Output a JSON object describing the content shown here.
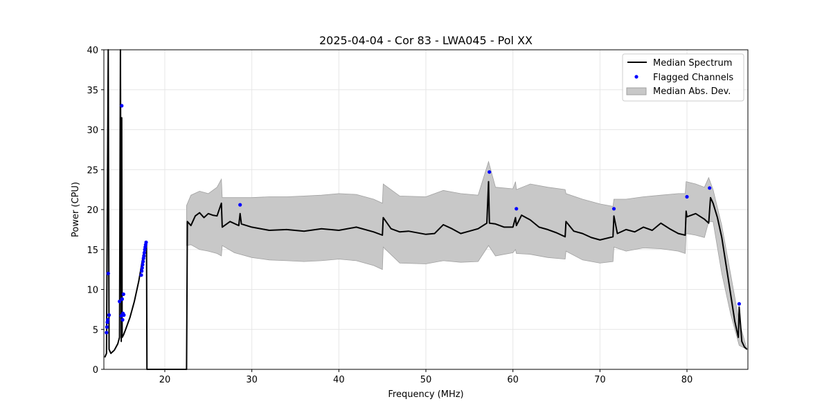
{
  "chart_data": {
    "type": "line",
    "title": "2025-04-04 - Cor 83 - LWA045 - Pol XX",
    "xlabel": "Frequency (MHz)",
    "ylabel": "Power (CPU)",
    "xlim": [
      13,
      87
    ],
    "ylim": [
      0,
      40
    ],
    "xticks": [
      20,
      30,
      40,
      50,
      60,
      70,
      80
    ],
    "yticks": [
      0,
      5,
      10,
      15,
      20,
      25,
      30,
      35,
      40
    ],
    "grid": true,
    "legend_position": "top-right",
    "colors": {
      "median": "#000000",
      "flagged": "#0000ff",
      "mad": "#c8c8c8",
      "mad_edge": "#a0a0a0",
      "grid": "#e6e6e6"
    },
    "series": [
      {
        "name": "Median Spectrum",
        "kind": "line",
        "x": [
          13.1,
          13.3,
          13.5,
          13.6,
          13.8,
          14.2,
          14.6,
          14.8,
          14.9,
          15.0,
          15.05,
          15.1,
          15.25,
          15.5,
          16.0,
          16.5,
          17.0,
          17.4,
          17.7,
          17.9,
          17.95,
          22.5,
          22.6,
          23.0,
          23.5,
          24.0,
          24.5,
          25.0,
          25.5,
          26.0,
          26.5,
          26.6,
          27.5,
          28.5,
          28.65,
          28.8,
          30.0,
          32.0,
          34.0,
          36.0,
          38.0,
          40.0,
          42.0,
          44.0,
          45.0,
          45.1,
          46.0,
          47.0,
          48.0,
          50.0,
          51.0,
          52.0,
          53.0,
          54.0,
          55.0,
          56.0,
          57.0,
          57.2,
          57.3,
          58.0,
          59.0,
          60.0,
          60.3,
          60.4,
          61.0,
          62.0,
          63.0,
          64.0,
          65.0,
          66.0,
          66.1,
          67.0,
          68.0,
          69.0,
          70.0,
          71.5,
          71.6,
          72.0,
          73.0,
          74.0,
          75.0,
          76.0,
          77.0,
          78.0,
          79.0,
          79.8,
          79.9,
          80.0,
          81.0,
          82.0,
          82.5,
          82.7,
          83.0,
          83.5,
          84.0,
          84.5,
          85.0,
          85.5,
          85.9,
          86.0,
          86.3,
          86.6,
          86.9
        ],
        "y": [
          1.5,
          2.0,
          40.0,
          2.5,
          2.0,
          2.4,
          3.2,
          4.0,
          40.0,
          3.5,
          31.5,
          4.0,
          4.3,
          5.0,
          6.5,
          8.5,
          11.0,
          13.5,
          15.3,
          15.8,
          0.0,
          0.0,
          18.5,
          18.0,
          19.2,
          19.6,
          19.0,
          19.5,
          19.3,
          19.2,
          20.8,
          17.8,
          18.5,
          18.0,
          19.5,
          18.2,
          17.8,
          17.4,
          17.5,
          17.3,
          17.6,
          17.4,
          17.8,
          17.2,
          16.8,
          19.0,
          17.6,
          17.2,
          17.3,
          16.9,
          17.0,
          18.1,
          17.6,
          17.0,
          17.3,
          17.6,
          18.3,
          23.5,
          18.3,
          18.2,
          17.8,
          17.8,
          19.0,
          18.0,
          19.3,
          18.7,
          17.8,
          17.5,
          17.1,
          16.6,
          18.5,
          17.3,
          17.0,
          16.5,
          16.2,
          16.6,
          19.2,
          17.0,
          17.5,
          17.2,
          17.8,
          17.4,
          18.3,
          17.6,
          17.0,
          16.8,
          19.8,
          19.1,
          19.5,
          18.8,
          18.3,
          21.5,
          20.8,
          19.0,
          16.5,
          13.0,
          9.5,
          6.0,
          4.0,
          7.8,
          3.5,
          2.8,
          2.5
        ]
      },
      {
        "name": "Flagged Channels",
        "kind": "scatter",
        "x": [
          13.3,
          13.35,
          13.4,
          13.45,
          13.5,
          13.6,
          14.8,
          15.0,
          15.05,
          15.1,
          15.15,
          15.2,
          15.25,
          15.3,
          17.3,
          17.35,
          17.4,
          17.45,
          17.5,
          17.55,
          17.6,
          17.65,
          17.7,
          17.75,
          17.8,
          17.85,
          28.65,
          57.3,
          60.4,
          71.6,
          80.0,
          82.6,
          86.0
        ],
        "y": [
          4.6,
          5.3,
          5.9,
          6.2,
          12.0,
          6.8,
          8.5,
          6.7,
          33.0,
          8.8,
          6.2,
          7.0,
          9.4,
          6.8,
          11.8,
          12.3,
          12.7,
          13.1,
          13.5,
          13.9,
          14.2,
          14.6,
          15.0,
          15.3,
          15.6,
          15.9,
          20.6,
          24.7,
          20.1,
          20.1,
          21.6,
          22.7,
          8.2
        ]
      },
      {
        "name": "Median Abs. Dev.",
        "kind": "band",
        "x": [
          22.5,
          23.0,
          24.0,
          25.0,
          26.0,
          26.5,
          26.6,
          28.0,
          30.0,
          32.0,
          34.0,
          36.0,
          38.0,
          40.0,
          42.0,
          44.0,
          45.0,
          45.1,
          47.0,
          50.0,
          52.0,
          54.0,
          56.0,
          57.2,
          58.0,
          60.0,
          60.3,
          60.4,
          62.0,
          64.0,
          66.0,
          66.1,
          68.0,
          70.0,
          71.5,
          71.6,
          73.0,
          75.0,
          77.0,
          79.0,
          79.8,
          79.9,
          81.0,
          82.0,
          82.5,
          83.0,
          84.0,
          85.0,
          86.0,
          86.9
        ],
        "upper": [
          20.5,
          21.8,
          22.3,
          22.0,
          22.8,
          23.8,
          21.5,
          21.5,
          21.5,
          21.6,
          21.6,
          21.7,
          21.8,
          22.0,
          21.9,
          21.3,
          20.8,
          23.2,
          21.7,
          21.6,
          22.4,
          22.0,
          21.8,
          26.0,
          22.8,
          22.6,
          23.5,
          22.5,
          23.2,
          22.8,
          22.5,
          22.0,
          21.3,
          20.7,
          20.4,
          21.3,
          21.3,
          21.6,
          21.8,
          22.0,
          22.0,
          23.5,
          23.2,
          22.8,
          24.0,
          22.5,
          18.0,
          12.0,
          6.0,
          2.5
        ],
        "lower": [
          15.5,
          15.6,
          15.0,
          14.8,
          14.5,
          14.2,
          15.5,
          14.6,
          14.0,
          13.7,
          13.6,
          13.5,
          13.6,
          13.8,
          13.6,
          13.0,
          12.5,
          15.3,
          13.3,
          13.2,
          13.6,
          13.4,
          13.5,
          15.5,
          14.2,
          14.6,
          15.0,
          14.5,
          14.4,
          14.0,
          13.8,
          14.8,
          13.7,
          13.3,
          13.5,
          15.3,
          14.8,
          15.2,
          15.1,
          14.8,
          14.5,
          17.0,
          16.8,
          16.5,
          18.5,
          18.5,
          12.0,
          7.0,
          3.0,
          2.5
        ]
      }
    ]
  }
}
